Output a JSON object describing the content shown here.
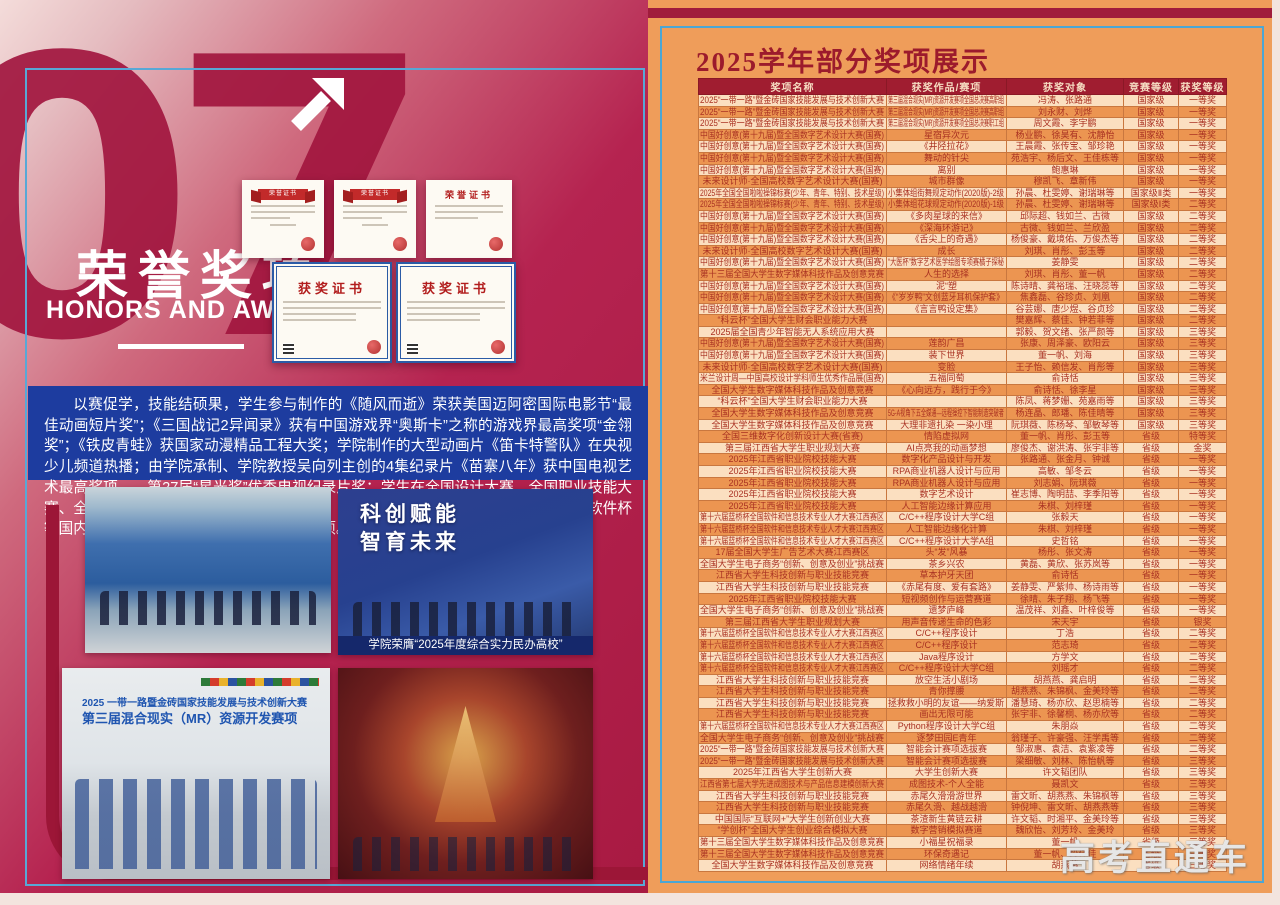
{
  "left_page": {
    "section_number": "07",
    "title": "荣誉奖项",
    "subtitle": "HONORS AND AWARDS",
    "paragraph": "以赛促学，技能结硕果，学生参与制作的《随风而逝》荣获美国迈阿密国际电影节“最佳动画短片奖”；《三国战记2异闻录》获有中国游戏界“奥斯卡”之称的游戏界最高奖项“金翎奖”；《铁皮青蛙》获国家动漫精品工程大奖；学院制作的大型动画片《笛卡特警队》在央视少儿频道热播；由学院承制、学院教授吴向列主创的4集纪录片《苗寨八年》获中国电视艺术最高奖项——第27届“星光奖”优秀电视纪录片奖；学生在全国设计大赛、全国职业技能大赛、全国大学生广告艺术大赛、米兰设计周、全国语言文字能力大赛、蓝桥杯、中国软件杯等国内外权威大赛中满载而归，斩获系列奖项。",
    "certificates": [
      {
        "title": "荣誉证书"
      },
      {
        "title": "荣誉证书"
      },
      {
        "title": "荣誉证书"
      },
      {
        "title": "获奖证书"
      },
      {
        "title": "获奖证书"
      }
    ],
    "photos": [
      {
        "description": "颁奖合影（蓝色背景舞台）"
      },
      {
        "headline_line1": "科创赋能",
        "headline_line2": "智育未来",
        "caption": "学院荣膺“2025年度综合实力民办高校”"
      },
      {
        "banner_line1": "2025 一带一路暨金砖国家技能发展与技术创新大赛",
        "banner_line2": "第三届混合现实（MR）资源开发赛项",
        "description": "获奖学生合影"
      },
      {
        "description": "颁奖典礼舞台"
      }
    ]
  },
  "right_page": {
    "title": "2025学年部分奖项展示",
    "watermark": "高考直通车",
    "table": {
      "headers": [
        "奖项名称",
        "获奖作品/赛项",
        "获奖对象",
        "竞赛等级",
        "获奖等级"
      ],
      "rows": [
        [
          "2025“一带一路”暨金砖国家技能发展与技术创新大赛",
          "第三届混合现实(MR)资源开发赛项全国总决赛高职组",
          "冯涛、张路通",
          "国家级",
          "一等奖"
        ],
        [
          "2025“一带一路”暨金砖国家技能发展与技术创新大赛",
          "第三届混合现实(MR)资源开发赛项全国总决赛高职组",
          "刘永财、刘烨",
          "国家级",
          "一等奖"
        ],
        [
          "2025“一带一路”暨金砖国家技能发展与技术创新大赛",
          "第三届混合现实(MR)资源开发赛项全国总决赛职工组",
          "周文霞、李宇鹏",
          "国家级",
          "一等奖"
        ],
        [
          "中国好创意(第十九届)暨全国数字艺术设计大赛(国赛)",
          "星宿异次元",
          "杨业鹏、徐昊有、沈静怡",
          "国家级",
          "一等奖"
        ],
        [
          "中国好创意(第十九届)暨全国数字艺术设计大赛(国赛)",
          "《井陉拉花》",
          "王晨霞、张传宝、邹珍艳",
          "国家级",
          "一等奖"
        ],
        [
          "中国好创意(第十九届)暨全国数字艺术设计大赛(国赛)",
          "舞动的针尖",
          "苑浩宇、杨后文、王佳栋等",
          "国家级",
          "一等奖"
        ],
        [
          "中国好创意(第十九届)暨全国数字艺术设计大赛(国赛)",
          "离别",
          "鲍惠琳",
          "国家级",
          "一等奖"
        ],
        [
          "未来设计师·全国高校数字艺术设计大赛(国赛)",
          "城市群像",
          "穆凯飞、章新伟",
          "国家级",
          "一等奖"
        ],
        [
          "2025年全国全国啦啦操锦标赛(少年、青年、特别、技术星级)",
          "小集体组街舞规定动作(2020版)-2级",
          "孙晨、杜雯婷、谢瑞琳等",
          "国家级Ⅱ类",
          "一等奖"
        ],
        [
          "2025年全国全国啦啦操锦标赛(少年、青年、特别、技术星级)",
          "小集体组花球规定动作(2020版)-1级",
          "孙晨、杜雯婷、谢瑞琳等",
          "国家级Ⅰ类",
          "二等奖"
        ],
        [
          "中国好创意(第十九届)暨全国数字艺术设计大赛(国赛)",
          "《多肉星球的来信》",
          "邱际超、钱如兰、古微",
          "国家级",
          "二等奖"
        ],
        [
          "中国好创意(第十九届)暨全国数字艺术设计大赛(国赛)",
          "《深海环游记》",
          "古微、钱如兰、兰欣盈",
          "国家级",
          "二等奖"
        ],
        [
          "中国好创意(第十九届)暨全国数字艺术设计大赛(国赛)",
          "《舌尖上的奇遇》",
          "杨俊豪、戴境佑、万俊杰等",
          "国家级",
          "二等奖"
        ],
        [
          "未来设计师·全国高校数字艺术设计大赛(国赛)",
          "成长",
          "刘琪、肖彤、彭玉等",
          "国家级",
          "二等奖"
        ],
        [
          "中国好创意(第十九届)暨全国数字艺术设计大赛(国赛)",
          "“大医杯”数字艺术医学绘图专项赛橘子探秘",
          "姜静雯",
          "国家级",
          "二等奖"
        ],
        [
          "第十三届全国大学生数字媒体科技作品及创意竞赛",
          "人生的选择",
          "刘琪、肖彤、董一帆",
          "国家级",
          "二等奖"
        ],
        [
          "中国好创意(第十九届)暨全国数字艺术设计大赛(国赛)",
          "泥“塑",
          "陈诗晴、龚裕瑞、汪晓蕊等",
          "国家级",
          "二等奖"
        ],
        [
          "中国好创意(第十九届)暨全国数字艺术设计大赛(国赛)",
          "《“岁岁鸭”文创蓝牙耳机保护套》",
          "焦鑫磊、谷珍贞、刘凰",
          "国家级",
          "二等奖"
        ],
        [
          "中国好创意(第十九届)暨全国数字艺术设计大赛(国赛)",
          "《言言鸭设定集》",
          "谷芸娜、唐少煜、谷贞珍",
          "国家级",
          "二等奖"
        ],
        [
          "“科云杯”全国大学生财会职业能力大赛",
          "",
          "樊嘉辉、蔡佳、钟若菲等",
          "国家级",
          "二等奖"
        ],
        [
          "2025届全国青少年智能无人系统应用大赛",
          "",
          "郭毅、贺文绪、张严颜等",
          "国家级",
          "三等奖"
        ],
        [
          "中国好创意(第十九届)暨全国数字艺术设计大赛(国赛)",
          "莲韵广昌",
          "张康、周泽豪、欧阳云",
          "国家级",
          "三等奖"
        ],
        [
          "中国好创意(第十九届)暨全国数字艺术设计大赛(国赛)",
          "装下世界",
          "董一帆、刘海",
          "国家级",
          "三等奖"
        ],
        [
          "未来设计师·全国高校数字艺术设计大赛(国赛)",
          "变脸",
          "王子怡、赖信发、肖彤等",
          "国家级",
          "三等奖"
        ],
        [
          "米兰设计周—中国高校设计学科师生优秀作品展(国赛)",
          "五福同萄",
          "俞诗恬",
          "国家级",
          "三等奖"
        ],
        [
          "全国大学生数字媒体科技作品及创意竞赛",
          "《心向远方，践行于今》",
          "俞诗恬、徐李星",
          "国家级",
          "三等奖"
        ],
        [
          "“科云杯”全国大学生财会职业能力大赛",
          "",
          "陈凤、蒋梦姗、苑嘉雨等",
          "国家级",
          "三等奖"
        ],
        [
          "全国大学生数字媒体科技作品及创意竞赛",
          "5G-A视角下五全媒通—远程操控下智能制造突破者",
          "杨连晶、郎璠、陈佳晴等",
          "国家级",
          "三等奖"
        ],
        [
          "全国大学生数字媒体科技作品及创意竞赛",
          "大理非遗扎染 一染小理",
          "阮琪薇、陈杨琴、邹敏琴等",
          "国家级",
          "三等奖"
        ],
        [
          "全国三维数字化创新设计大赛(省赛)",
          "情陷虚拟网",
          "董一帆、肖彤、彭玉等",
          "省级",
          "特等奖"
        ],
        [
          "第三届江西省大学生职业规划大赛",
          "AI点亮我的动画梦想",
          "廖俊杰、谢洪涛、张宇非等",
          "省级",
          "金奖"
        ],
        [
          "2025年江西省职业院校技能大赛",
          "数字化产品设计与开发",
          "张路通、张金月、钟诚",
          "省级",
          "一等奖"
        ],
        [
          "2025年江西省职业院校技能大赛",
          "RPA商业机器人设计与应用",
          "高敏、邹冬云",
          "省级",
          "一等奖"
        ],
        [
          "2025年江西省职业院校技能大赛",
          "RPA商业机器人设计与应用",
          "刘志娟、阮琪薇",
          "省级",
          "一等奖"
        ],
        [
          "2025年江西省职业院校技能大赛",
          "数字艺术设计",
          "崔志博、陶明喆、李季阳等",
          "省级",
          "一等奖"
        ],
        [
          "2025年江西省职业院校技能大赛",
          "人工智能边缘计算应用",
          "朱棋、刘梓瑾",
          "省级",
          "一等奖"
        ],
        [
          "第十六届蓝桥杯全国软件和信息技术专业人才大赛江西赛区",
          "C/C++程序设计大学C组",
          "张毅天",
          "省级",
          "一等奖"
        ],
        [
          "第十六届蓝桥杯全国软件和信息技术专业人才大赛江西赛区",
          "人工智能边缘化计算",
          "朱棋、刘梓瑾",
          "省级",
          "一等奖"
        ],
        [
          "第十六届蓝桥杯全国软件和信息技术专业人才大赛江西赛区",
          "C/C++程序设计大学A组",
          "史哲铭",
          "省级",
          "一等奖"
        ],
        [
          "17届全国大学生广告艺术大赛江西赛区",
          "头“发”风暴",
          "杨彤、张文涛",
          "省级",
          "一等奖"
        ],
        [
          "全国大学生电子商务“创新、创意及创业”挑战赛",
          "茶乡兴农",
          "黄磊、黄欣、张苏岚等",
          "省级",
          "一等奖"
        ],
        [
          "江西省大学生科技创新与职业技能竞赛",
          "草本护牙天团",
          "俞诗恬",
          "省级",
          "一等奖"
        ],
        [
          "江西省大学生科技创新与职业技能竞赛",
          "《赤尾有度、爱有套路》",
          "姜静雯、严紫帅、杨诗雨等",
          "省级",
          "一等奖"
        ],
        [
          "2025年江西省职业院校技能大赛",
          "短视频创作与运营赛道",
          "徐晴、朱子翔、杨飞等",
          "省级",
          "一等奖"
        ],
        [
          "全国大学生电子商务“创新、创意及创业”挑战赛",
          "遗梦庐峰",
          "温茂祥、刘鑫、叶梓俊等",
          "省级",
          "一等奖"
        ],
        [
          "第三届江西省大学生职业规划大赛",
          "用声音传递生命的色彩",
          "宋天宇",
          "省级",
          "银奖"
        ],
        [
          "第十六届蓝桥杯全国软件和信息技术专业人才大赛江西赛区",
          "C/C++程序设计",
          "丁浩",
          "省级",
          "二等奖"
        ],
        [
          "第十六届蓝桥杯全国软件和信息技术专业人才大赛江西赛区",
          "C/C++程序设计",
          "范志琦",
          "省级",
          "二等奖"
        ],
        [
          "第十六届蓝桥杯全国软件和信息技术专业人才大赛江西赛区",
          "Java程序设计",
          "方学文",
          "省级",
          "二等奖"
        ],
        [
          "第十六届蓝桥杯全国软件和信息技术专业人才大赛江西赛区",
          "C/C++程序设计大学C组",
          "刘瑶才",
          "省级",
          "二等奖"
        ],
        [
          "江西省大学生科技创新与职业技能竞赛",
          "放空生活小剧场",
          "胡燕燕、龚启明",
          "省级",
          "二等奖"
        ],
        [
          "江西省大学生科技创新与职业技能竞赛",
          "青你撑腰",
          "胡燕燕、朱锦枫、金美玲等",
          "省级",
          "二等奖"
        ],
        [
          "江西省大学生科技创新与职业技能竞赛",
          "拯救救小明的友谊——纳爱斯",
          "潘慧琦、杨亦欣、赵思楠等",
          "省级",
          "二等奖"
        ],
        [
          "江西省大学生科技创新与职业技能竞赛",
          "画出无限可能",
          "张宇非、徐馨桐、杨亦欣等",
          "省级",
          "二等奖"
        ],
        [
          "第十六届蓝桥杯全国软件和信息技术专业人才大赛江西赛区",
          "Python程序设计大学C组",
          "朱朋焱",
          "省级",
          "二等奖"
        ],
        [
          "全国大学生电子商务“创新、创意及创业”挑战赛",
          "逐梦田园E青年",
          "翁瑾子、许豪强、汪学禹等",
          "省级",
          "二等奖"
        ],
        [
          "2025“一带一路”暨金砖国家技能发展与技术创新大赛",
          "智能会计赛项选拔赛",
          "邹淑惠、袁洁、袁紫凌等",
          "省级",
          "二等奖"
        ],
        [
          "2025“一带一路”暨金砖国家技能发展与技术创新大赛",
          "智能会计赛项选拔赛",
          "梁细敏、刘林、陈怡帆等",
          "省级",
          "三等奖"
        ],
        [
          "2025年江西省大学生创新大赛",
          "大学生创新大赛",
          "许文韬团队",
          "省级",
          "三等奖"
        ],
        [
          "江西省第七届大学先进成图技术与产品信息建模创新大赛",
          "成图技术-个人全能",
          "聂凯文",
          "省级",
          "三等奖"
        ],
        [
          "江西省大学生科技创新与职业技能竞赛",
          "赤尾久滑滑游世界",
          "雷文昕、胡燕燕、朱锦枫等",
          "省级",
          "三等奖"
        ],
        [
          "江西省大学生科技创新与职业技能竞赛",
          "赤尾久滑、越战越滑",
          "钟倪坤、雷文昕、胡燕燕等",
          "省级",
          "三等奖"
        ],
        [
          "中国国际“互联网+”大学生创新创业大赛",
          "茶渣新生黄链云耕",
          "许文韬、时湘平、金美玲等",
          "省级",
          "三等奖"
        ],
        [
          "“学创杯”全国大学生创业综合模拟大赛",
          "数字营销模拟赛道",
          "魏欣怡、刘芳玲、金美玲",
          "省级",
          "三等奖"
        ],
        [
          "第十三届全国大学生数字媒体科技作品及创意竞赛",
          "小福星祝福录",
          "董一帆",
          "省级",
          "三等奖"
        ],
        [
          "第十三届全国大学生数字媒体科技作品及创意竞赛",
          "环保奇遇记",
          "董一帆、段佳佳",
          "省级",
          "三等奖"
        ],
        [
          "全国大学生数字媒体科技作品及创意竞赛",
          "网络情绪年续",
          "胡燕燕",
          "省级",
          "三等奖"
        ]
      ]
    }
  },
  "colors": {
    "left_page_red": "#a81a42",
    "band_blue": "#1d3c9f",
    "right_page_orange": "#ef9d5a",
    "table_header_red": "#a01d30",
    "row_light": "#fbdfc0",
    "row_dark": "#ec9551",
    "frame_blue": "#4ba6d4",
    "title_red": "#9c1b2c"
  }
}
